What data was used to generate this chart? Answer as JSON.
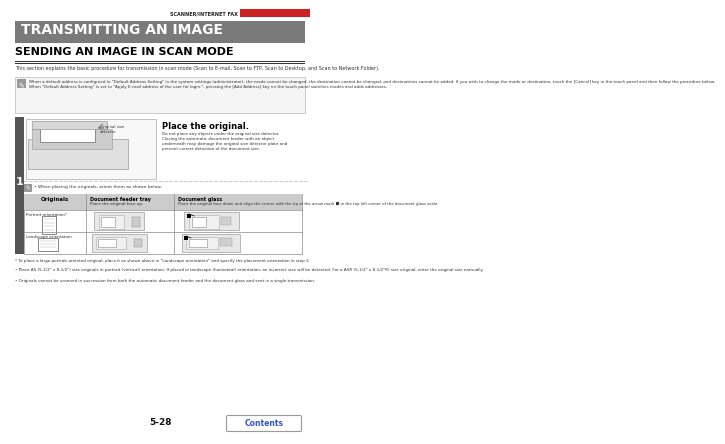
{
  "page_num": "5-28",
  "header_text": "SCANNER/INTERNET FAX",
  "header_bar_color": "#cc2222",
  "title_bg_color": "#7a7a7a",
  "title_text": "TRANSMITTING AN IMAGE",
  "title_text_color": "#ffffff",
  "section_title": "SENDING AN IMAGE IN SCAN MODE",
  "section_desc": "This section explains the basic procedure for transmission in scan mode (Scan to E-mail, Scan to FTP, Scan to Desktop, and Scan to Network Folder).",
  "note_text": "When a default address is configured in \"Default Address Setting\" in the system settings (administrator), the mode cannot be changed, the destination cannot be changed, and destinations cannot be added. If you wish to change the mode or destination, touch the [Cancel] key in the touch panel and then follow the procedure below.\nWhen \"Default Address Setting\" is set to \"Apply E-mail address of the user for login.\", pressing the [Add Address] key on the touch panel switches modes and adds addresses.",
  "note_bg_color": "#f5f5f5",
  "step_number": "1",
  "step_bg_color": "#555555",
  "place_title": "Place the original.",
  "place_desc": "Do not place any objects under the original size detector.\nClosing the automatic document feeder with an object\nunderneath may damage the original size detector plate and\nprevent correct detection of the document size.",
  "table_header_bg": "#cccccc",
  "originals_col": "Originals",
  "feeder_col_bold": "Document feeder tray",
  "feeder_col_normal": "Place the original face up.",
  "glass_col_bold": "Document glass",
  "glass_col_normal": "Place the original face down and align the corner with the tip of the arrow mark ■ in the top left corner of the document glass scale.",
  "row1_label": "Portrait orientation*",
  "row2_label": "Landscape orientation",
  "footnote1": "* To place a large portrait-oriented original, place it as shown above in \"Landscape orientation\" and specify the placement orientation in step 3.",
  "footnote2": "• Place A5 (5-1/2\" x 8-1/2\") size originals in portrait (vertical) orientation. If placed in landscape (horizontal) orientation, an incorrect size will be detected. For a A5R (5-1/2\" x 8-1/2\"R) size original, enter the original size manually.",
  "footnote3": "• Originals cannot be scanned in succession from both the automatic document feeder and the document glass and sent in a single transmission.",
  "contents_text": "Contents",
  "contents_color": "#3355cc",
  "bg_color": "#ffffff",
  "when_placing_text": "• When placing the originals, orient them as shown below."
}
